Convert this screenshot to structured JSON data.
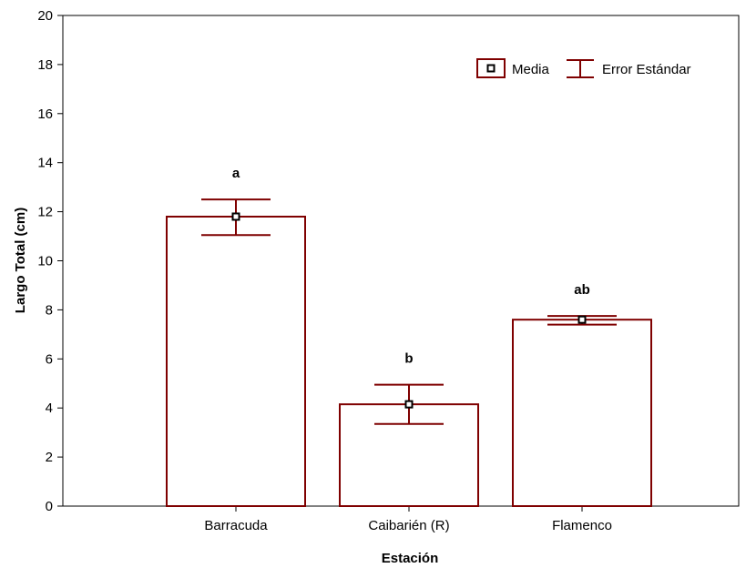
{
  "chart_data": {
    "type": "bar",
    "categories": [
      "Barracuda",
      "Caibarién (R)",
      "Flamenco"
    ],
    "values": [
      11.8,
      4.15,
      7.6
    ],
    "error_upper": [
      12.5,
      4.95,
      7.75
    ],
    "error_lower": [
      11.05,
      3.35,
      7.4
    ],
    "significance_labels": [
      "a",
      "b",
      "ab"
    ],
    "xlabel": "Estación",
    "ylabel": "Largo Total (cm)",
    "ylim": [
      0,
      20
    ],
    "yticks": [
      0,
      2,
      4,
      6,
      8,
      10,
      12,
      14,
      16,
      18,
      20
    ],
    "grid": false,
    "legend": {
      "placement": "top-right",
      "mean_label": "Media",
      "error_label": "Error Estándar"
    },
    "colors": {
      "bar_outline": "#7f0000",
      "bar_fill": "#ffffff",
      "axis": "#000000"
    }
  }
}
